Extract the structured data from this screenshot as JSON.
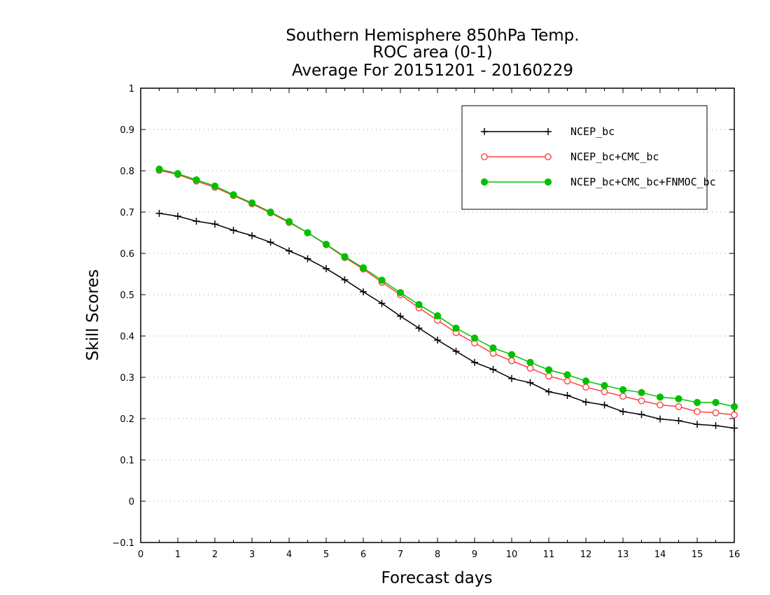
{
  "chart_data": {
    "type": "line",
    "title": [
      "Southern Hemisphere 850hPa Temp.",
      "ROC area (0-1)",
      "Average For 20151201 - 20160229"
    ],
    "xlabel": "Forecast days",
    "ylabel": "Skill Scores",
    "xlim": [
      0,
      16
    ],
    "ylim": [
      -0.1,
      1
    ],
    "xticks": [
      "0",
      "1",
      "2",
      "3",
      "4",
      "5",
      "6",
      "7",
      "8",
      "9",
      "10",
      "11",
      "12",
      "13",
      "14",
      "15",
      "16"
    ],
    "yticks": [
      "−0.1",
      "0",
      "0.1",
      "0.2",
      "0.3",
      "0.4",
      "0.5",
      "0.6",
      "0.7",
      "0.8",
      "0.9",
      "1"
    ],
    "grid": true,
    "legend_position": "top-right",
    "x": [
      0.5,
      1,
      1.5,
      2,
      2.5,
      3,
      3.5,
      4,
      4.5,
      5,
      5.5,
      6,
      6.5,
      7,
      7.5,
      8,
      8.5,
      9,
      9.5,
      10,
      10.5,
      11,
      11.5,
      12,
      12.5,
      13,
      13.5,
      14,
      14.5,
      15,
      15.5,
      16
    ],
    "series": [
      {
        "name": "NCEP_bc",
        "color": "#000000",
        "marker": "plus",
        "values": [
          0.697,
          0.69,
          0.678,
          0.671,
          0.656,
          0.643,
          0.627,
          0.606,
          0.587,
          0.563,
          0.536,
          0.507,
          0.479,
          0.448,
          0.419,
          0.39,
          0.363,
          0.336,
          0.319,
          0.297,
          0.287,
          0.265,
          0.256,
          0.24,
          0.233,
          0.217,
          0.21,
          0.199,
          0.195,
          0.186,
          0.183,
          0.177
        ]
      },
      {
        "name": "NCEP_bc+CMC_bc",
        "color": "#ff4040",
        "marker": "open-circle",
        "values": [
          0.801,
          0.791,
          0.775,
          0.76,
          0.74,
          0.72,
          0.698,
          0.675,
          0.65,
          0.621,
          0.59,
          0.562,
          0.53,
          0.5,
          0.468,
          0.438,
          0.408,
          0.383,
          0.358,
          0.34,
          0.322,
          0.303,
          0.291,
          0.276,
          0.265,
          0.254,
          0.243,
          0.233,
          0.229,
          0.217,
          0.214,
          0.209
        ]
      },
      {
        "name": "NCEP_bc+CMC_bc+FNMOC_bc",
        "color": "#00c000",
        "marker": "filled-circle",
        "values": [
          0.804,
          0.793,
          0.778,
          0.763,
          0.742,
          0.722,
          0.7,
          0.677,
          0.65,
          0.622,
          0.592,
          0.565,
          0.535,
          0.505,
          0.476,
          0.449,
          0.419,
          0.395,
          0.371,
          0.355,
          0.336,
          0.318,
          0.306,
          0.291,
          0.28,
          0.27,
          0.263,
          0.252,
          0.248,
          0.239,
          0.239,
          0.229
        ]
      }
    ]
  }
}
